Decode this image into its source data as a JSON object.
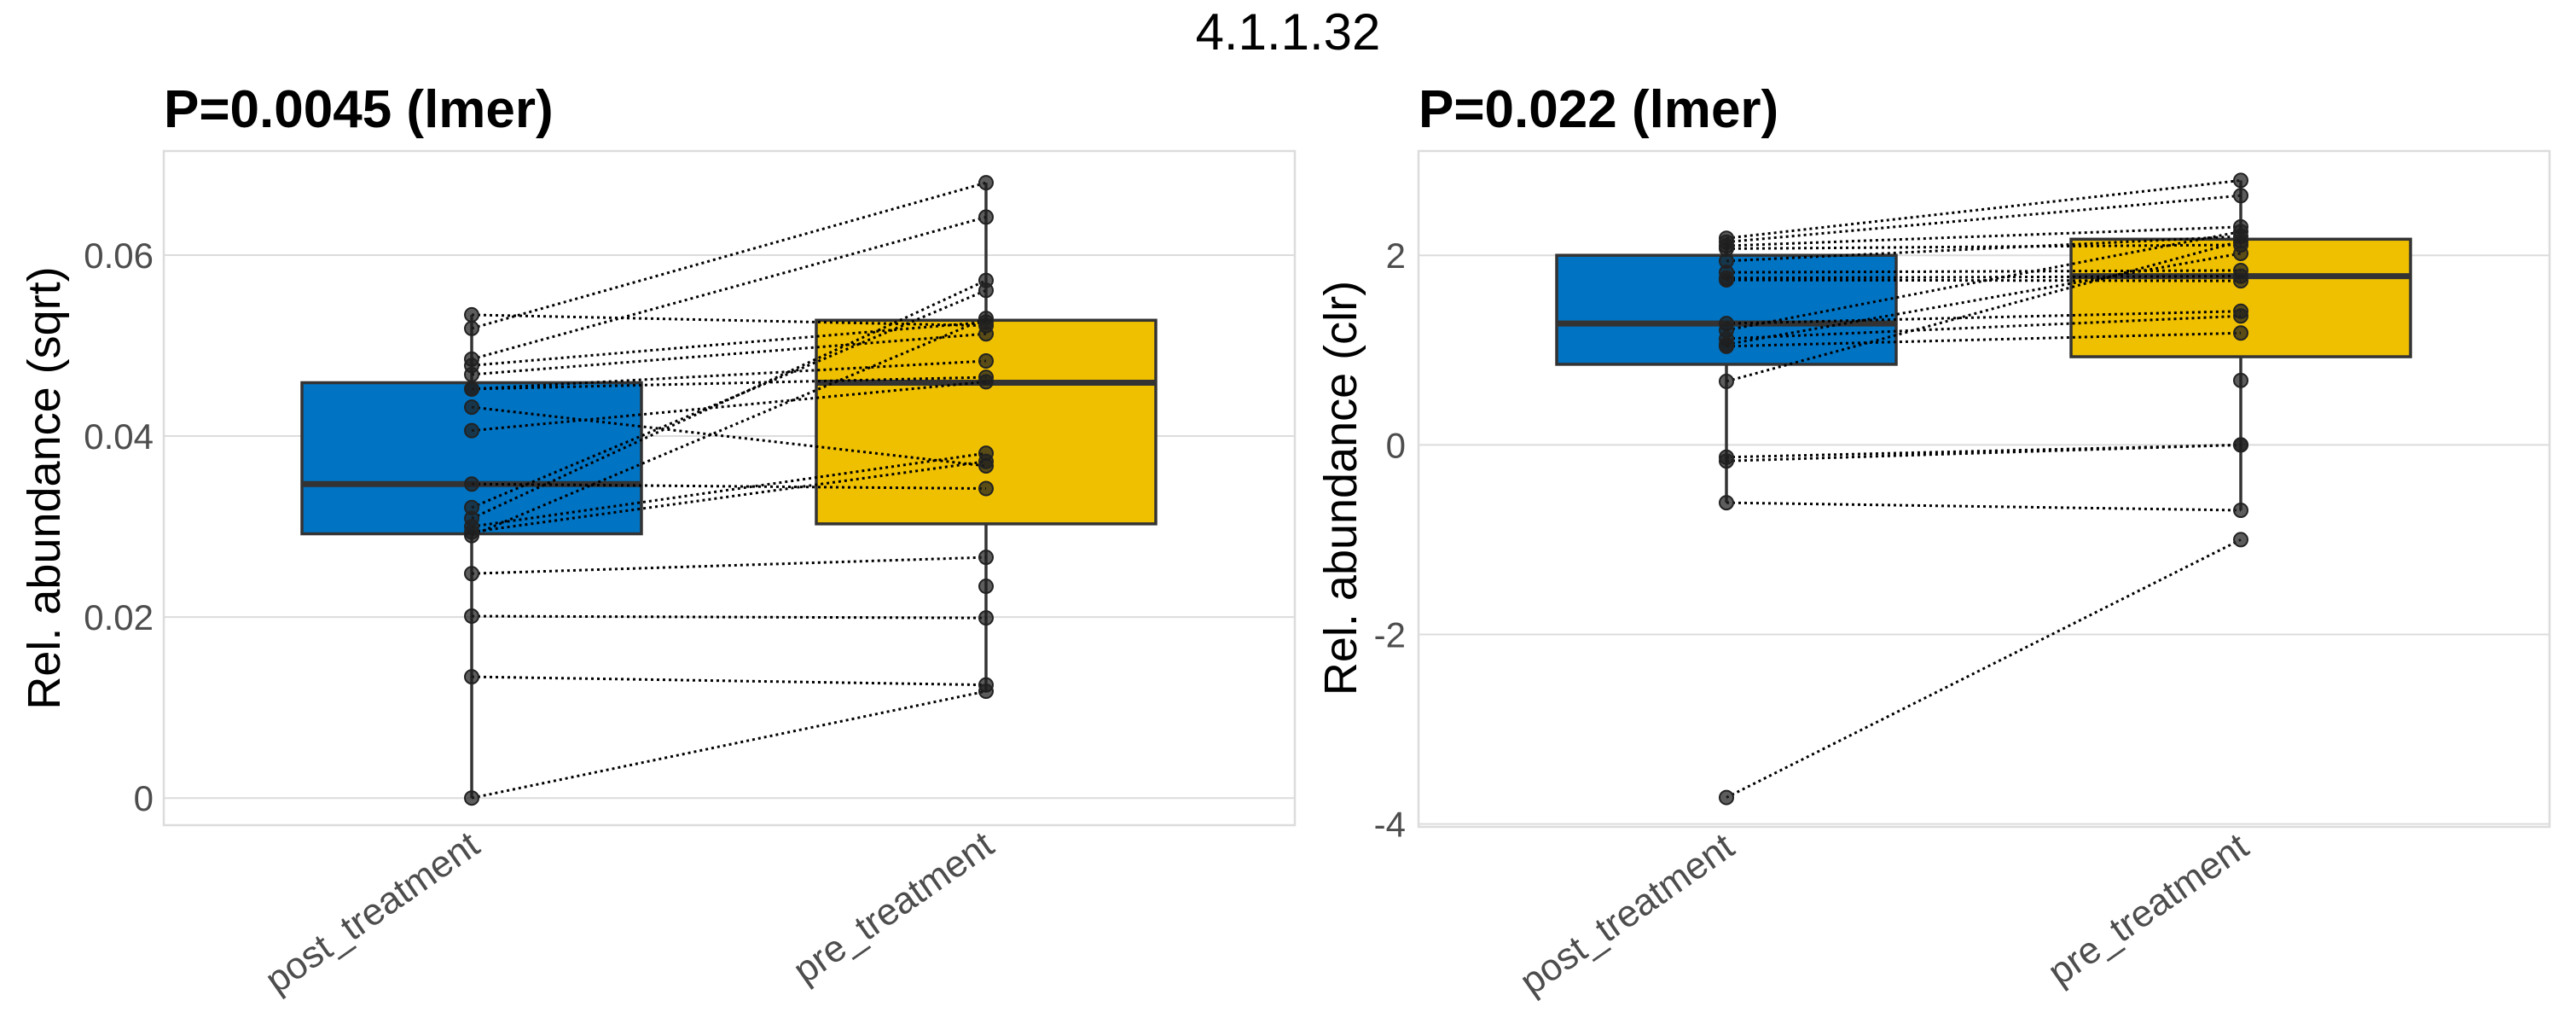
{
  "chart_data": {
    "type": "box",
    "title": "4.1.1.32",
    "panels": [
      {
        "subtitle": "P=0.0045 (lmer)",
        "ylabel": "Rel. abundance (sqrt)",
        "xlabel": "",
        "categories": [
          "post_treatment",
          "pre_treatment"
        ],
        "colors": [
          "#0073C2",
          "#EFC000"
        ],
        "ylim": [
          -0.003,
          0.0715
        ],
        "yticks": [
          0,
          0.02,
          0.04,
          0.06
        ],
        "ytick_labels": [
          "0",
          "0.02",
          "0.04",
          "0.06"
        ],
        "grid": true,
        "boxes": [
          {
            "group": "post_treatment",
            "q1": 0.0292,
            "median": 0.0347,
            "q3": 0.0459,
            "whisker_low": 0.0,
            "whisker_high": 0.0534
          },
          {
            "group": "pre_treatment",
            "q1": 0.0303,
            "median": 0.0459,
            "q3": 0.0528,
            "whisker_low": 0.0118,
            "whisker_high": 0.068
          }
        ],
        "pairs": [
          {
            "post": 0.0534,
            "pre": 0.0522
          },
          {
            "post": 0.0519,
            "pre": 0.068
          },
          {
            "post": 0.0485,
            "pre": 0.0642
          },
          {
            "post": 0.0478,
            "pre": 0.0526
          },
          {
            "post": 0.0468,
            "pre": 0.0513
          },
          {
            "post": 0.0452,
            "pre": 0.0483
          },
          {
            "post": 0.0452,
            "pre": 0.0465
          },
          {
            "post": 0.0432,
            "pre": 0.0367
          },
          {
            "post": 0.0406,
            "pre": 0.046
          },
          {
            "post": 0.0347,
            "pre": 0.0342
          },
          {
            "post": 0.0321,
            "pre": 0.0561
          },
          {
            "post": 0.0309,
            "pre": 0.0572
          },
          {
            "post": 0.03,
            "pre": 0.0381
          },
          {
            "post": 0.0294,
            "pre": 0.0372
          },
          {
            "post": 0.029,
            "pre": 0.053
          },
          {
            "post": 0.0248,
            "pre": 0.0266
          },
          {
            "post": 0.0201,
            "pre": 0.0199
          },
          {
            "post": 0.0134,
            "pre": 0.0125
          },
          {
            "post": 0.0,
            "pre": 0.0118
          }
        ],
        "unpaired": [
          {
            "group": "pre_treatment",
            "value": 0.0234
          }
        ]
      },
      {
        "subtitle": "P=0.022 (lmer)",
        "ylabel": "Rel. abundance (clr)",
        "xlabel": "",
        "categories": [
          "post_treatment",
          "pre_treatment"
        ],
        "colors": [
          "#0073C2",
          "#EFC000"
        ],
        "ylim": [
          -4.03,
          3.1
        ],
        "yticks": [
          -4,
          -2,
          0,
          2
        ],
        "ytick_labels": [
          "-4",
          "-2",
          "0",
          "2"
        ],
        "grid": true,
        "boxes": [
          {
            "group": "post_treatment",
            "q1": 0.85,
            "median": 1.28,
            "q3": 2.0,
            "whisker_low": -0.61,
            "whisker_high": 2.18
          },
          {
            "group": "pre_treatment",
            "q1": 0.93,
            "median": 1.78,
            "q3": 2.17,
            "whisker_low": -0.69,
            "whisker_high": 2.79
          }
        ],
        "pairs": [
          {
            "post": 2.18,
            "pre": 2.79
          },
          {
            "post": 2.14,
            "pre": 2.63
          },
          {
            "post": 2.1,
            "pre": 2.3
          },
          {
            "post": 2.07,
            "pre": 2.11
          },
          {
            "post": 1.94,
            "pre": 2.2
          },
          {
            "post": 1.82,
            "pre": 1.84
          },
          {
            "post": 1.76,
            "pre": 1.78
          },
          {
            "post": 1.74,
            "pre": 1.73
          },
          {
            "post": 1.28,
            "pre": 1.41
          },
          {
            "post": 1.21,
            "pre": 2.25
          },
          {
            "post": 1.12,
            "pre": 1.36
          },
          {
            "post": 1.04,
            "pre": 1.18
          },
          {
            "post": 1.06,
            "pre": 2.02
          },
          {
            "post": 0.67,
            "pre": 2.15
          },
          {
            "post": -0.13,
            "pre": 0.0
          },
          {
            "post": -0.17,
            "pre": 0.0
          },
          {
            "post": -0.61,
            "pre": -0.69
          },
          {
            "post": -3.72,
            "pre": -1.0
          }
        ],
        "unpaired": [
          {
            "group": "pre_treatment",
            "value": 0.68
          }
        ]
      }
    ]
  }
}
